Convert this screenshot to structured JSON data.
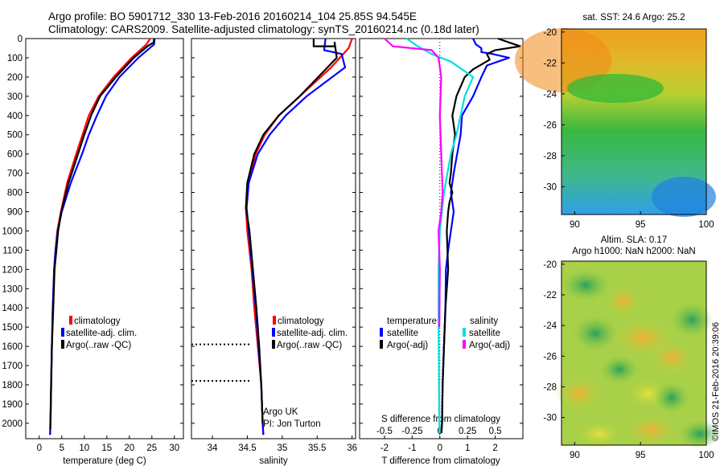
{
  "header": {
    "title_line1": "Argo profile: BO 5901712_330 13-Feb-2016 20160214_104 25.85S 94.545E",
    "title_line2": "Climatology: CARS2009. Satellite-adjusted climatology: synTS_20160214.nc (0.18d later)"
  },
  "chart_data": [
    {
      "type": "line",
      "name": "temperature-profile",
      "xlabel": "temperature (deg C)",
      "ylabel": "",
      "xlim": [
        -3,
        32
      ],
      "ylim": [
        2080,
        0
      ],
      "y_inverted": true,
      "xticks": [
        0,
        5,
        10,
        15,
        20,
        25,
        30
      ],
      "yticks": [
        0,
        100,
        200,
        300,
        400,
        500,
        600,
        700,
        800,
        900,
        1000,
        1100,
        1200,
        1300,
        1400,
        1500,
        1600,
        1700,
        1800,
        1900,
        2000
      ],
      "legend": [
        "climatology",
        "satellite-adj. clim.",
        "Argo(..raw -QC)"
      ],
      "legend_colors": [
        "#ff0000",
        "#0000ff",
        "#000000"
      ],
      "series": [
        {
          "name": "climatology",
          "color": "#ff0000",
          "x": [
            24.6,
            23.8,
            20.5,
            16.5,
            13.2,
            11.0,
            9.6,
            8.2,
            6.2,
            4.8,
            4.0,
            3.6,
            3.3,
            3.0,
            2.8,
            2.65,
            2.5,
            2.4
          ],
          "y": [
            0,
            30,
            100,
            200,
            300,
            400,
            500,
            600,
            750,
            900,
            1000,
            1100,
            1200,
            1400,
            1600,
            1800,
            2000,
            2060
          ]
        },
        {
          "name": "satellite-adj. clim.",
          "color": "#0000ff",
          "x": [
            25.6,
            25.5,
            22.0,
            17.8,
            14.8,
            12.8,
            11.0,
            9.5,
            7.0,
            5.0,
            4.1,
            3.6,
            3.3,
            3.0,
            2.8,
            2.65,
            2.5,
            2.4
          ],
          "y": [
            0,
            30,
            100,
            200,
            300,
            400,
            500,
            600,
            750,
            900,
            1000,
            1100,
            1200,
            1400,
            1600,
            1800,
            2000,
            2060
          ]
        },
        {
          "name": "Argo(..raw -QC)",
          "color": "#000000",
          "x": [
            25.5,
            25.4,
            24.0,
            21.0,
            17.0,
            13.5,
            11.5,
            10.0,
            8.6,
            6.5,
            4.9,
            4.2,
            3.8,
            3.4,
            3.1,
            2.8,
            2.62,
            2.5,
            2.42
          ],
          "y": [
            0,
            20,
            40,
            100,
            200,
            300,
            400,
            500,
            600,
            750,
            900,
            1000,
            1100,
            1200,
            1400,
            1600,
            1800,
            1950,
            2030
          ]
        }
      ]
    },
    {
      "type": "line",
      "name": "salinity-profile",
      "xlabel": "salinity",
      "ylabel": "",
      "xlim": [
        33.7,
        36.05
      ],
      "ylim": [
        2080,
        0
      ],
      "y_inverted": true,
      "xticks": [
        34,
        34.5,
        35,
        35.5,
        36
      ],
      "legend": [
        "climatology",
        "satellite-adj. clim.",
        "Argo(..raw -QC)"
      ],
      "legend_colors": [
        "#ff0000",
        "#0000ff",
        "#000000"
      ],
      "annotations": [
        "Argo UK",
        "PI: Jon Turton"
      ],
      "dotted_depths": [
        1590,
        1780
      ],
      "series": [
        {
          "name": "climatology",
          "color": "#ff0000",
          "x": [
            36.0,
            35.95,
            35.7,
            35.25,
            34.95,
            34.75,
            34.62,
            34.52,
            34.48,
            34.5,
            34.56,
            34.6,
            34.65,
            34.7,
            34.72,
            34.73
          ],
          "y": [
            0,
            50,
            150,
            300,
            400,
            500,
            600,
            750,
            880,
            1000,
            1200,
            1400,
            1600,
            1800,
            2000,
            2060
          ]
        },
        {
          "name": "satellite-adj. clim.",
          "color": "#0000ff",
          "x": [
            35.62,
            35.6,
            35.85,
            35.9,
            35.35,
            35.05,
            34.82,
            34.65,
            34.52,
            34.49,
            34.52,
            34.57,
            34.62,
            34.66,
            34.7,
            34.72,
            34.73
          ],
          "y": [
            0,
            60,
            80,
            150,
            300,
            400,
            500,
            600,
            750,
            880,
            1000,
            1200,
            1400,
            1600,
            1800,
            2000,
            2060
          ]
        },
        {
          "name": "Argo(..raw -QC)",
          "color": "#000000",
          "x": [
            35.45,
            35.45,
            35.75,
            35.75,
            35.78,
            35.25,
            34.95,
            34.73,
            34.6,
            34.5,
            34.48,
            34.53,
            34.58,
            34.63,
            34.67,
            34.7,
            34.72
          ],
          "y": [
            0,
            40,
            40,
            20,
            100,
            300,
            400,
            500,
            600,
            750,
            880,
            1000,
            1200,
            1400,
            1600,
            1800,
            2000
          ]
        }
      ]
    },
    {
      "type": "line",
      "name": "difference-profile",
      "xlabel": "T difference from climatology",
      "xlabel2": "S difference from climatology",
      "xlim": [
        -2.9,
        3.0
      ],
      "ylim": [
        2080,
        0
      ],
      "y_inverted": true,
      "xticks": [
        -2,
        -1,
        0,
        1,
        2
      ],
      "xticks_top": [
        -0.5,
        -0.25,
        0,
        0.25,
        0.5
      ],
      "legend_temp_title": "temperature",
      "legend_sal_title": "salinity",
      "legend_temp": [
        "satellite",
        "Argo(-adj)"
      ],
      "legend_sal": [
        "satellite",
        "Argo(-adj)"
      ],
      "legend_temp_colors": [
        "#0000ff",
        "#000000"
      ],
      "legend_sal_colors": [
        "#00e0e0",
        "#ff00ff"
      ],
      "series": [
        {
          "name": "T satellite",
          "color": "#0000ff",
          "x": [
            1.2,
            1.3,
            1.5,
            1.5,
            1.9,
            2.5,
            2.1,
            1.7,
            1.5,
            1.2,
            0.8,
            0.75,
            0.5,
            0.4,
            0.5,
            0.4,
            0.3,
            0.22,
            0.2,
            0.15,
            0.1,
            0.08,
            0.06
          ],
          "y": [
            0,
            30,
            50,
            70,
            80,
            100,
            120,
            140,
            200,
            300,
            400,
            500,
            700,
            800,
            900,
            1000,
            1100,
            1200,
            1400,
            1600,
            1800,
            2000,
            2050
          ]
        },
        {
          "name": "T Argo",
          "color": "#000000",
          "x": [
            2.1,
            2.9,
            2.0,
            1.7,
            1.8,
            1.2,
            0.9,
            0.6,
            0.45,
            0.55,
            0.45,
            0.4,
            0.35,
            0.45,
            0.35,
            0.3,
            0.25,
            0.3,
            0.2,
            0.15,
            0.1,
            0.08,
            0.05
          ],
          "y": [
            0,
            40,
            60,
            80,
            110,
            160,
            200,
            300,
            400,
            500,
            600,
            700,
            750,
            800,
            850,
            900,
            1000,
            1200,
            1400,
            1600,
            1800,
            2000,
            2050
          ]
        },
        {
          "name": "S satellite",
          "color": "#00e0e0",
          "x": [
            -1.2,
            -0.8,
            -0.3,
            0.4,
            1.2,
            0.9,
            0.75,
            0.6,
            0.4,
            0.15,
            0.0,
            -0.05,
            -0.05,
            -0.04,
            -0.03,
            -0.02,
            0.0
          ],
          "y": [
            0,
            40,
            80,
            120,
            200,
            300,
            400,
            500,
            600,
            800,
            1000,
            1200,
            1400,
            1600,
            1800,
            2000,
            2050
          ]
        },
        {
          "name": "S Argo",
          "color": "#ff00ff",
          "x": [
            -2.0,
            -1.7,
            -0.3,
            -0.05,
            0.05,
            0.0,
            0.05,
            0.1,
            0.05,
            -0.05,
            0.0,
            -0.02
          ],
          "y": [
            0,
            40,
            60,
            100,
            200,
            400,
            600,
            800,
            900,
            1000,
            1200,
            1500
          ]
        }
      ]
    },
    {
      "type": "heatmap",
      "name": "sst-map",
      "title": "sat. SST: 24.6 Argo: 25.2",
      "xlim": [
        89,
        100
      ],
      "ylim": [
        -31.8,
        -19.8
      ],
      "xticks": [
        90,
        95,
        100
      ],
      "yticks": [
        -20,
        -22,
        -24,
        -26,
        -28,
        -30
      ]
    },
    {
      "type": "heatmap",
      "name": "sla-map",
      "title_line1": "Altim. SLA: 0.17",
      "title_line2": "Argo h1000: NaN h2000: NaN",
      "xlim": [
        89,
        100
      ],
      "ylim": [
        -31.8,
        -19.8
      ],
      "xticks": [
        90,
        95,
        100
      ],
      "yticks": [
        -20,
        -22,
        -24,
        -26,
        -28,
        -30
      ]
    }
  ],
  "footer": {
    "credit": "©IMOS 21-Feb-2016 20:39:06"
  }
}
